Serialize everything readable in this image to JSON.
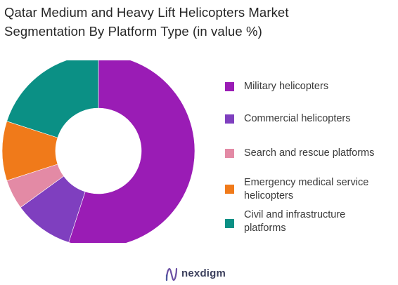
{
  "title_lines": [
    "Qatar Medium and Heavy Lift Helicopters  Market",
    "Segmentation By Platform Type (in value %)"
  ],
  "chart_data": {
    "type": "pie",
    "variant": "donut",
    "title": "Qatar Medium and Heavy Lift Helicopters  Market Segmentation By Platform Type (in value %)",
    "categories": [
      "Military helicopters",
      "Commercial helicopters",
      "Search and rescue platforms",
      "Emergency medical service helicopters",
      "Civil and infrastructure platforms"
    ],
    "values": [
      55,
      10,
      5,
      10,
      20
    ],
    "colors": [
      "#9a1cb5",
      "#7f3fbf",
      "#e38aa5",
      "#f07a1a",
      "#0b9085"
    ],
    "legend_position": "right"
  },
  "legend": [
    {
      "lines": [
        "Military helicopters"
      ],
      "color": "#9a1cb5"
    },
    {
      "lines": [
        "Commercial helicopters"
      ],
      "color": "#7f3fbf"
    },
    {
      "lines": [
        "Search and rescue platforms"
      ],
      "color": "#e38aa5"
    },
    {
      "lines": [
        "Emergency medical service",
        "helicopters"
      ],
      "color": "#f07a1a"
    },
    {
      "lines": [
        "Civil and infrastructure",
        "platforms"
      ],
      "color": "#0b9085"
    }
  ],
  "brand": {
    "name": "nexdigm",
    "icon": "nexdigm-logo-icon"
  }
}
